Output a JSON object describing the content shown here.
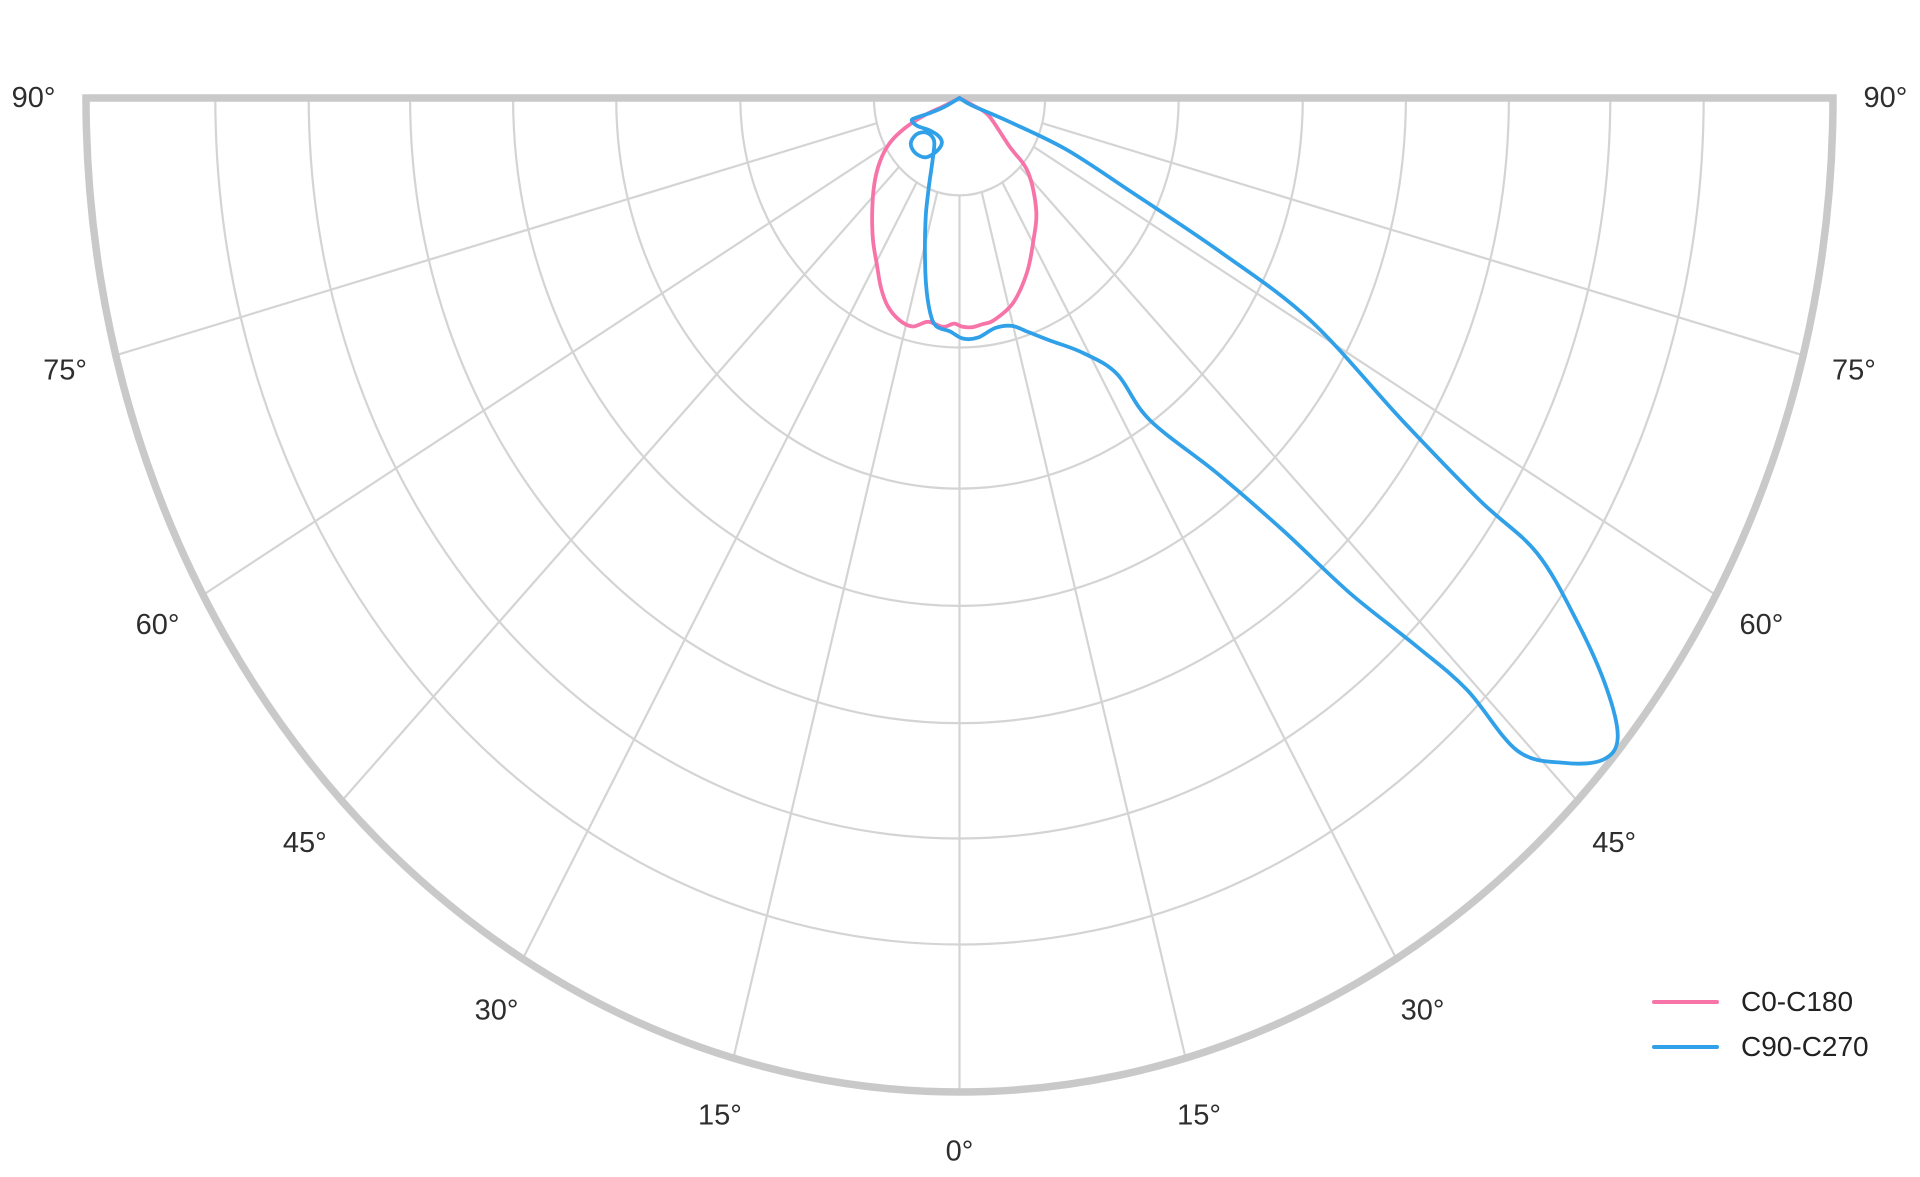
{
  "chart_data": {
    "type": "polar",
    "subtype": "photometric-light-distribution",
    "title": "",
    "background": "#ffffff",
    "text_color": "#2e2e2e",
    "grid": {
      "color": "#d4d4d4",
      "boundary_color": "#c9c9c9"
    },
    "angular_axis": {
      "unit": "deg",
      "zero_at": "bottom",
      "range_deg": [
        -90,
        90
      ],
      "tick_step_deg": 15,
      "gridline_angles_deg": [
        -75,
        -60,
        -45,
        -30,
        -15,
        0,
        15,
        30,
        45,
        60,
        75
      ],
      "tick_labels": [
        {
          "deg": -90,
          "label": "90°"
        },
        {
          "deg": -75,
          "label": "75°"
        },
        {
          "deg": -60,
          "label": "60°"
        },
        {
          "deg": -45,
          "label": "45°"
        },
        {
          "deg": -30,
          "label": "30°"
        },
        {
          "deg": -15,
          "label": "15°"
        },
        {
          "deg": 0,
          "label": "0°"
        },
        {
          "deg": 15,
          "label": "15°"
        },
        {
          "deg": 30,
          "label": "30°"
        },
        {
          "deg": 45,
          "label": "45°"
        },
        {
          "deg": 60,
          "label": "60°"
        },
        {
          "deg": 75,
          "label": "75°"
        },
        {
          "deg": 90,
          "label": "90°"
        }
      ]
    },
    "radial_axis": {
      "normalized_max": 1.0,
      "ring_fractions": [
        0.098,
        0.251,
        0.393,
        0.511,
        0.629,
        0.745,
        0.852
      ],
      "value_labels_shown": false
    },
    "series": [
      {
        "name": "C0-C180",
        "color": "#f774a9",
        "points_deg_r": [
          [
            -66.0,
            0.0
          ],
          [
            -65.7,
            0.02
          ],
          [
            -66.6,
            0.043
          ],
          [
            -64.2,
            0.069
          ],
          [
            -60.4,
            0.092
          ],
          [
            -54.7,
            0.112
          ],
          [
            -48.2,
            0.131
          ],
          [
            -41.1,
            0.152
          ],
          [
            -34.7,
            0.174
          ],
          [
            -29.3,
            0.193
          ],
          [
            -25.2,
            0.211
          ],
          [
            -21.4,
            0.225
          ],
          [
            -17.0,
            0.234
          ],
          [
            -13.1,
            0.236
          ],
          [
            -9.1,
            0.228
          ],
          [
            -4.7,
            0.231
          ],
          [
            -1.6,
            0.227
          ],
          [
            0.7,
            0.23
          ],
          [
            3.6,
            0.231
          ],
          [
            6.7,
            0.229
          ],
          [
            10.0,
            0.227
          ],
          [
            16.6,
            0.215
          ],
          [
            23.7,
            0.192
          ],
          [
            30.1,
            0.168
          ],
          [
            37.9,
            0.143
          ],
          [
            46.5,
            0.108
          ],
          [
            49.6,
            0.075
          ],
          [
            61.8,
            0.038
          ],
          [
            64.3,
            0.018
          ],
          [
            66.0,
            0.0
          ]
        ]
      },
      {
        "name": "C90-C270",
        "color": "#30a1e8",
        "points_deg_r": [
          [
            66.0,
            0.0
          ],
          [
            62.5,
            0.017
          ],
          [
            67.3,
            0.063
          ],
          [
            67.0,
            0.134
          ],
          [
            64.3,
            0.22
          ],
          [
            62.6,
            0.336
          ],
          [
            60.9,
            0.459
          ],
          [
            57.4,
            0.601
          ],
          [
            55.8,
            0.72
          ],
          [
            55.3,
            0.804
          ],
          [
            53.3,
            0.882
          ],
          [
            51.3,
            0.949
          ],
          [
            49.5,
            0.991
          ],
          [
            47.9,
            0.993
          ],
          [
            46.0,
            0.963
          ],
          [
            44.2,
            0.916
          ],
          [
            44.3,
            0.832
          ],
          [
            43.5,
            0.761
          ],
          [
            41.9,
            0.669
          ],
          [
            40.4,
            0.571
          ],
          [
            38.0,
            0.479
          ],
          [
            33.9,
            0.39
          ],
          [
            33.0,
            0.331
          ],
          [
            28.9,
            0.293
          ],
          [
            23.0,
            0.265
          ],
          [
            18.4,
            0.248
          ],
          [
            14.7,
            0.237
          ],
          [
            10.0,
            0.235
          ],
          [
            5.0,
            0.242
          ],
          [
            0.9,
            0.242
          ],
          [
            -2.7,
            0.235
          ],
          [
            -6.7,
            0.231
          ],
          [
            -8.9,
            0.218
          ],
          [
            -11.5,
            0.192
          ],
          [
            -14.5,
            0.158
          ],
          [
            -18.1,
            0.124
          ],
          [
            -21.7,
            0.094
          ],
          [
            -26.7,
            0.068
          ],
          [
            -34.0,
            0.052
          ],
          [
            -46.6,
            0.051
          ],
          [
            -53.4,
            0.061
          ],
          [
            -50.8,
            0.072
          ],
          [
            -42.6,
            0.075
          ],
          [
            -32.9,
            0.071
          ],
          [
            -25.8,
            0.059
          ],
          [
            -24.3,
            0.049
          ],
          [
            -33.5,
            0.045
          ],
          [
            -48.3,
            0.048
          ],
          [
            -59.9,
            0.056
          ],
          [
            -67.9,
            0.059
          ],
          [
            -68.1,
            0.051
          ],
          [
            -65.9,
            0.037
          ],
          [
            -62.9,
            0.02
          ],
          [
            -60.0,
            0.0
          ]
        ]
      }
    ],
    "legend": {
      "position": "lower-right",
      "entries": [
        {
          "label": "C0-C180",
          "color": "#f774a9"
        },
        {
          "label": "C90-C270",
          "color": "#30a1e8"
        }
      ]
    }
  }
}
